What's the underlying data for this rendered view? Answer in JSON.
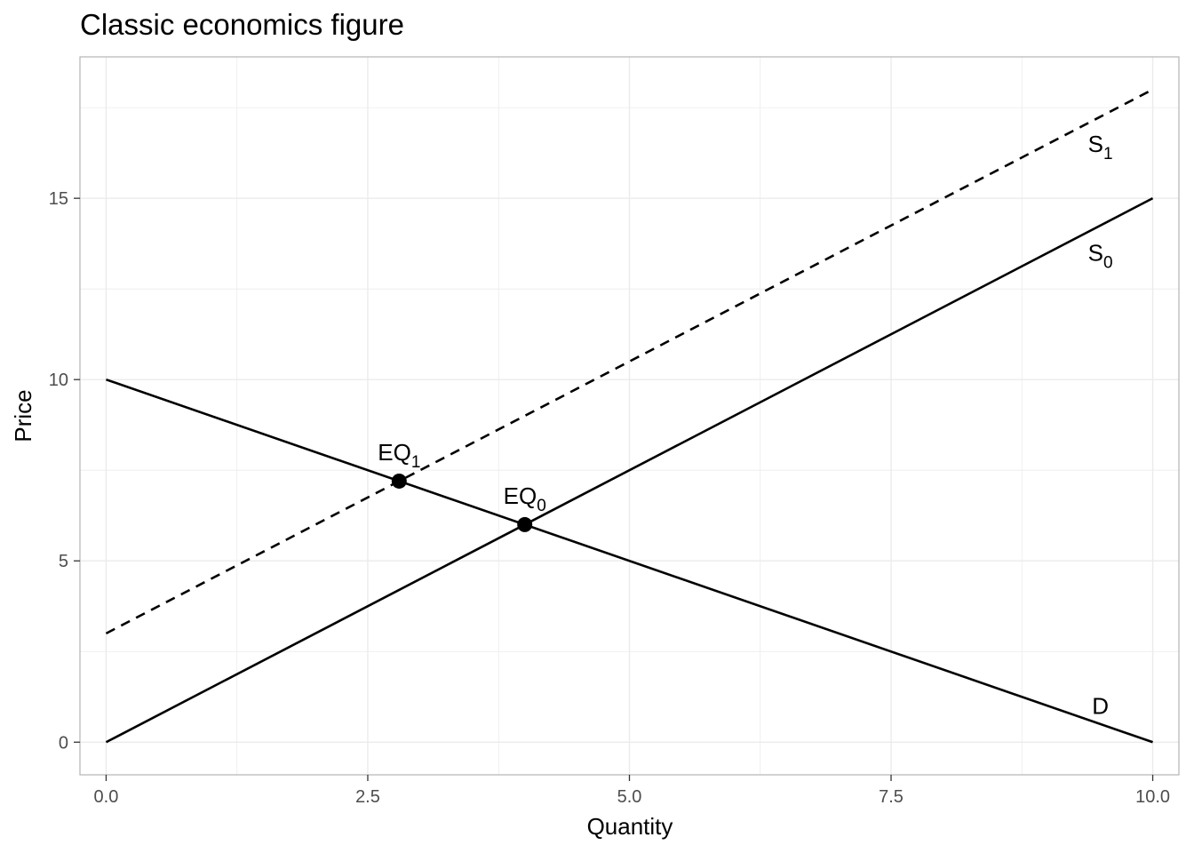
{
  "chart_data": {
    "type": "line",
    "title": "Classic economics figure",
    "xlabel": "Quantity",
    "ylabel": "Price",
    "xlim": [
      -0.25,
      10.25
    ],
    "ylim": [
      -0.9,
      18.9
    ],
    "x_ticks": [
      0,
      2.5,
      5,
      7.5,
      10
    ],
    "x_tick_labels": [
      "0.0",
      "2.5",
      "5.0",
      "7.5",
      "10.0"
    ],
    "y_ticks": [
      0,
      5,
      10,
      15
    ],
    "y_tick_labels": [
      "0",
      "5",
      "10",
      "15"
    ],
    "grid": true,
    "legend": "none",
    "series": [
      {
        "name": "S0",
        "line_style": "solid",
        "color": "#000000",
        "points": [
          [
            0,
            0
          ],
          [
            10,
            15
          ]
        ]
      },
      {
        "name": "S1",
        "line_style": "dashed",
        "color": "#000000",
        "points": [
          [
            0,
            3
          ],
          [
            10,
            18
          ]
        ]
      },
      {
        "name": "D",
        "line_style": "solid",
        "color": "#000000",
        "points": [
          [
            0,
            10
          ],
          [
            10,
            0
          ]
        ]
      }
    ],
    "points": [
      {
        "name": "EQ0",
        "x": 4.0,
        "y": 6.0
      },
      {
        "name": "EQ1",
        "x": 2.8,
        "y": 7.2
      }
    ],
    "annotations": [
      {
        "name": "S1",
        "base": "S",
        "sub": "1",
        "x": 9.5,
        "y": 16.5
      },
      {
        "name": "S0",
        "base": "S",
        "sub": "0",
        "x": 9.5,
        "y": 13.5
      },
      {
        "name": "D",
        "base": "D",
        "sub": "",
        "x": 9.5,
        "y": 1.0
      },
      {
        "name": "EQ1",
        "base": "EQ",
        "sub": "1",
        "x": 2.8,
        "y": 8.0
      },
      {
        "name": "EQ0",
        "base": "EQ",
        "sub": "0",
        "x": 4.0,
        "y": 6.8
      }
    ],
    "colors": {
      "panel_border": "#b3b3b3",
      "grid": "#ebebeb",
      "tick_text": "#4d4d4d",
      "line": "#000000"
    }
  }
}
